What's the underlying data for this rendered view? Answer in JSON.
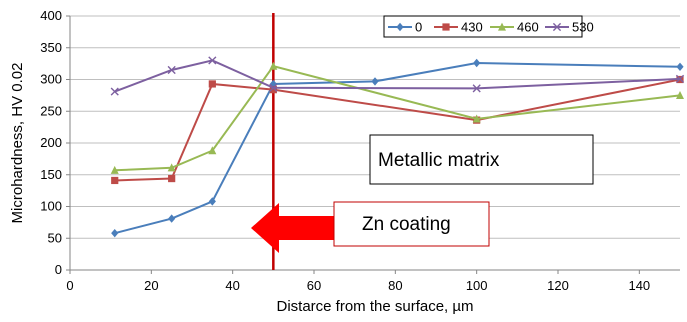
{
  "chart_data": {
    "type": "line",
    "title": "",
    "xlabel": "Distarce from the surface, µm",
    "ylabel": "Microhardness, HV 0.02",
    "xlim": [
      0,
      150
    ],
    "ylim": [
      0,
      400
    ],
    "x_ticks": [
      0,
      20,
      40,
      60,
      80,
      100,
      120,
      140
    ],
    "x_tick_labels": [
      "0",
      "20",
      "40",
      "60",
      "80",
      "100",
      "120",
      "140"
    ],
    "y_ticks": [
      0,
      50,
      100,
      150,
      200,
      250,
      300,
      350,
      400
    ],
    "y_tick_labels": [
      "0",
      "50",
      "100",
      "150",
      "200",
      "250",
      "300",
      "350",
      "400"
    ],
    "grid": "horizontal",
    "legend_position": "top-right",
    "series": [
      {
        "name": "0",
        "color": "#4a7ebb",
        "marker": "diamond",
        "x": [
          11,
          25,
          35,
          50,
          75,
          100,
          150
        ],
        "y": [
          58,
          81,
          108,
          293,
          297,
          326,
          320
        ]
      },
      {
        "name": "430",
        "color": "#be4b48",
        "marker": "square",
        "x": [
          11,
          25,
          35,
          50,
          100,
          150
        ],
        "y": [
          141,
          144,
          293,
          284,
          236,
          300
        ]
      },
      {
        "name": "460",
        "color": "#98b954",
        "marker": "triangle",
        "x": [
          11,
          25,
          35,
          50,
          100,
          150
        ],
        "y": [
          157,
          161,
          188,
          321,
          238,
          275
        ]
      },
      {
        "name": "530",
        "color": "#7d60a0",
        "marker": "x",
        "x": [
          11,
          25,
          35,
          50,
          100,
          150
        ],
        "y": [
          281,
          315,
          330,
          287,
          286,
          301
        ]
      }
    ],
    "reference_line": {
      "x": 50,
      "color": "#c00000"
    },
    "annotations": [
      {
        "text": "Metallic matrix"
      },
      {
        "text": "Zn coating",
        "arrow_direction": "left",
        "arrow_color": "#ff0000",
        "box_border_color": "#c00000"
      }
    ]
  }
}
